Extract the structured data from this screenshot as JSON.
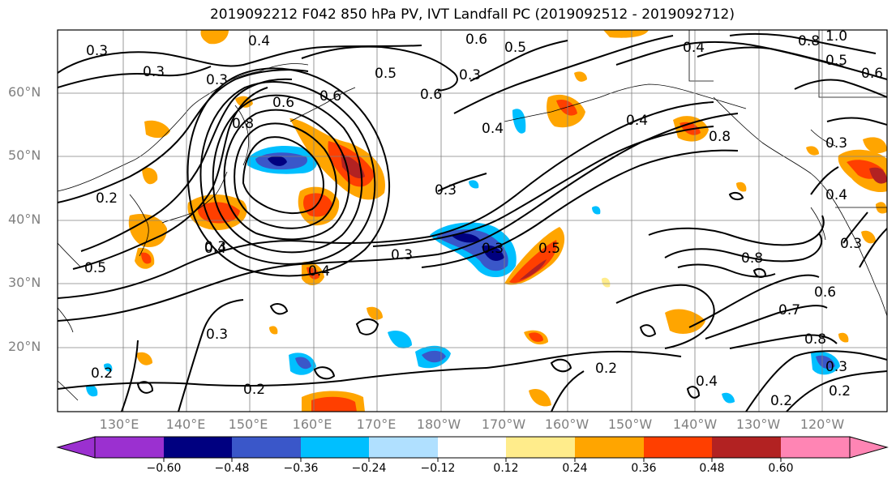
{
  "title": "2019092212 F042 850 hPa PV, IVT Landfall PC (2019092512 - 2019092712)",
  "lat_labels": [
    "60°N",
    "50°N",
    "40°N",
    "30°N",
    "20°N"
  ],
  "lon_labels": [
    "130°E",
    "140°E",
    "150°E",
    "160°E",
    "170°E",
    "180°W",
    "170°W",
    "160°W",
    "150°W",
    "140°W",
    "130°W",
    "120°W"
  ],
  "colorbar": {
    "ticks": [
      "−0.60",
      "−0.48",
      "−0.36",
      "−0.24",
      "−0.12",
      "0.12",
      "0.24",
      "0.36",
      "0.48",
      "0.60"
    ],
    "colors": [
      "#9b30d0",
      "#000080",
      "#3a57c9",
      "#00bfff",
      "#b0e0ff",
      "#ffffff",
      "#ffec8b",
      "#ffa500",
      "#ff3f00",
      "#b22222",
      "#ff85b4"
    ]
  },
  "contour_labels": [
    {
      "text": "0.3"
    },
    {
      "text": "0.4"
    },
    {
      "text": "0.3"
    },
    {
      "text": "0.3"
    },
    {
      "text": "0.6"
    },
    {
      "text": "0.5"
    },
    {
      "text": "0.5"
    },
    {
      "text": "0.6"
    },
    {
      "text": "0.3"
    },
    {
      "text": "0.6"
    },
    {
      "text": "0.8"
    },
    {
      "text": "0.6"
    },
    {
      "text": "0.4"
    },
    {
      "text": "0.4"
    },
    {
      "text": "0.3"
    },
    {
      "text": "0.4"
    },
    {
      "text": "0.8"
    },
    {
      "text": "1.0"
    },
    {
      "text": "0.8"
    },
    {
      "text": "0.5"
    },
    {
      "text": "0.6"
    },
    {
      "text": "0.3"
    },
    {
      "text": "0.3"
    },
    {
      "text": "0.4"
    },
    {
      "text": "0.3"
    },
    {
      "text": "0.3"
    },
    {
      "text": "0.5"
    },
    {
      "text": "0.3"
    },
    {
      "text": "0.4"
    },
    {
      "text": "0.4"
    },
    {
      "text": "0.5"
    },
    {
      "text": "0.8"
    },
    {
      "text": "0.7"
    },
    {
      "text": "0.8"
    },
    {
      "text": "0.6"
    },
    {
      "text": "0.3"
    },
    {
      "text": "0.2"
    },
    {
      "text": "0.2"
    },
    {
      "text": "0.2"
    },
    {
      "text": "0.2"
    },
    {
      "text": "0.2"
    },
    {
      "text": "0.4"
    },
    {
      "text": "0.2"
    },
    {
      "text": "0.3"
    }
  ]
}
